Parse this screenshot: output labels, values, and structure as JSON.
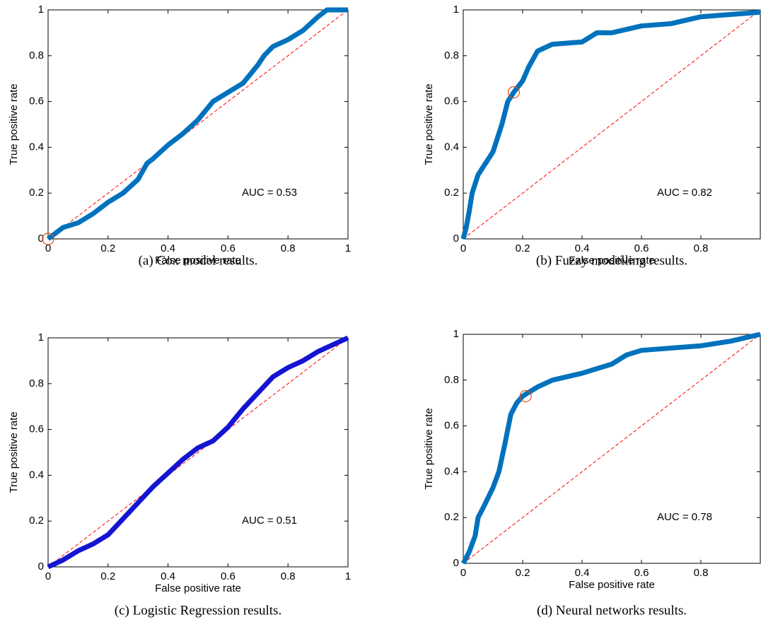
{
  "chart_data": [
    {
      "type": "line",
      "caption": "(a) Cox model results.",
      "xlabel": "False positive rate",
      "ylabel": "True positive rate",
      "annotation": "AUC = 0.53",
      "xlim": [
        0,
        1
      ],
      "ylim": [
        0,
        1
      ],
      "xticks": [
        0,
        0.2,
        0.4,
        0.6,
        0.8,
        1
      ],
      "yticks": [
        0,
        0.2,
        0.4,
        0.6,
        0.8,
        1
      ],
      "series": [
        {
          "color": "#0072bd",
          "x": [
            0,
            0.02,
            0.05,
            0.1,
            0.15,
            0.2,
            0.25,
            0.3,
            0.33,
            0.35,
            0.4,
            0.45,
            0.5,
            0.55,
            0.6,
            0.65,
            0.7,
            0.72,
            0.75,
            0.8,
            0.85,
            0.9,
            0.93,
            1
          ],
          "values": [
            0,
            0.02,
            0.05,
            0.07,
            0.11,
            0.16,
            0.2,
            0.26,
            0.33,
            0.35,
            0.41,
            0.46,
            0.52,
            0.6,
            0.64,
            0.68,
            0.76,
            0.8,
            0.84,
            0.87,
            0.91,
            0.97,
            1,
            1
          ]
        },
        {
          "color": "#ff0000",
          "linestyle": "dashed",
          "x": [
            0,
            1
          ],
          "values": [
            0,
            1
          ]
        }
      ],
      "marker": {
        "x": 0,
        "y": 0,
        "color": "#d95319"
      }
    },
    {
      "type": "line",
      "caption": "(b) Fuzzy modelling results.",
      "xlabel": "False positive rate",
      "ylabel": "True positive rate",
      "annotation": "AUC = 0.82",
      "xlim": [
        0,
        1
      ],
      "ylim": [
        0,
        1
      ],
      "xticks": [
        0,
        0.2,
        0.4,
        0.6,
        0.8
      ],
      "yticks": [
        0,
        0.2,
        0.4,
        0.6,
        0.8,
        1
      ],
      "series": [
        {
          "color": "#0072bd",
          "x": [
            0,
            0.01,
            0.02,
            0.03,
            0.05,
            0.07,
            0.1,
            0.13,
            0.15,
            0.17,
            0.2,
            0.22,
            0.25,
            0.3,
            0.4,
            0.45,
            0.5,
            0.6,
            0.7,
            0.8,
            0.9,
            1
          ],
          "values": [
            0,
            0.05,
            0.12,
            0.2,
            0.28,
            0.32,
            0.38,
            0.5,
            0.6,
            0.64,
            0.69,
            0.75,
            0.82,
            0.85,
            0.86,
            0.9,
            0.9,
            0.93,
            0.94,
            0.97,
            0.98,
            0.99
          ]
        },
        {
          "color": "#ff0000",
          "linestyle": "dashed",
          "x": [
            0,
            1
          ],
          "values": [
            0,
            1
          ]
        }
      ],
      "marker": {
        "x": 0.17,
        "y": 0.64,
        "color": "#d95319"
      }
    },
    {
      "type": "line",
      "caption": "(c) Logistic Regression results.",
      "xlabel": "False positive rate",
      "ylabel": "True positive rate",
      "annotation": "AUC = 0.51",
      "xlim": [
        0,
        1
      ],
      "ylim": [
        0,
        1
      ],
      "xticks": [
        0,
        0.2,
        0.4,
        0.6,
        0.8,
        1
      ],
      "yticks": [
        0,
        0.2,
        0.4,
        0.6,
        0.8,
        1
      ],
      "series": [
        {
          "color": "#1414d2",
          "x": [
            0,
            0.05,
            0.1,
            0.15,
            0.2,
            0.25,
            0.3,
            0.35,
            0.4,
            0.45,
            0.5,
            0.55,
            0.6,
            0.65,
            0.7,
            0.75,
            0.8,
            0.85,
            0.9,
            0.95,
            1
          ],
          "values": [
            0,
            0.03,
            0.07,
            0.1,
            0.14,
            0.21,
            0.28,
            0.35,
            0.41,
            0.47,
            0.52,
            0.55,
            0.61,
            0.69,
            0.76,
            0.83,
            0.87,
            0.9,
            0.94,
            0.97,
            1
          ]
        },
        {
          "color": "#ff0000",
          "linestyle": "dashed",
          "x": [
            0,
            1
          ],
          "values": [
            0,
            1
          ]
        }
      ]
    },
    {
      "type": "line",
      "caption": "(d) Neural networks results.",
      "xlabel": "False positive rate",
      "ylabel": "True positive rate",
      "annotation": "AUC = 0.78",
      "xlim": [
        0,
        1
      ],
      "ylim": [
        0,
        1
      ],
      "xticks": [
        0,
        0.2,
        0.4,
        0.6,
        0.8
      ],
      "yticks": [
        0,
        0.2,
        0.4,
        0.6,
        0.8,
        1
      ],
      "series": [
        {
          "color": "#0072bd",
          "x": [
            0,
            0.02,
            0.04,
            0.05,
            0.07,
            0.1,
            0.12,
            0.14,
            0.16,
            0.18,
            0.2,
            0.25,
            0.3,
            0.4,
            0.5,
            0.55,
            0.6,
            0.7,
            0.8,
            0.9,
            1
          ],
          "values": [
            0,
            0.05,
            0.12,
            0.2,
            0.25,
            0.33,
            0.4,
            0.52,
            0.65,
            0.7,
            0.73,
            0.77,
            0.8,
            0.83,
            0.87,
            0.91,
            0.93,
            0.94,
            0.95,
            0.97,
            1
          ]
        },
        {
          "color": "#ff0000",
          "linestyle": "dashed",
          "x": [
            0,
            1
          ],
          "values": [
            0,
            1
          ]
        }
      ],
      "marker": {
        "x": 0.21,
        "y": 0.73,
        "color": "#d95319"
      }
    }
  ]
}
